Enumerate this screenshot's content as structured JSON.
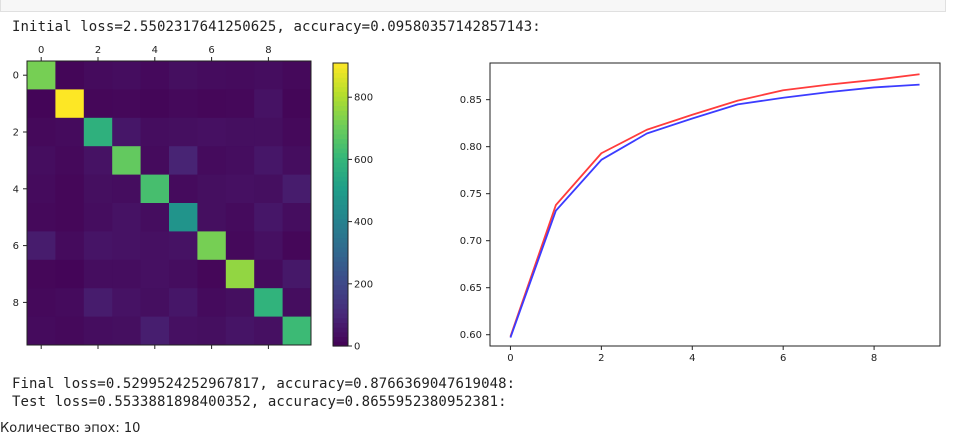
{
  "output": {
    "initial_line": "Initial loss=2.5502317641250625, accuracy=0.09580357142857143:",
    "final_line": "Final loss=0.5299524252967817, accuracy=0.8766369047619048:",
    "test_line": "Test loss=0.5533881898400352, accuracy=0.8655952380952381:",
    "cut_line": "Количество эпох: 10"
  },
  "chart_data": [
    {
      "type": "heatmap",
      "title": "",
      "rows": 10,
      "cols": 10,
      "x_ticks": [
        0,
        2,
        4,
        6,
        8
      ],
      "y_ticks": [
        0,
        2,
        4,
        6,
        8
      ],
      "colorbar": {
        "min": 0,
        "max": 910,
        "ticks": [
          0,
          200,
          400,
          600,
          800
        ]
      },
      "colormap": "viridis",
      "values": [
        [
          720,
          12,
          25,
          30,
          22,
          35,
          28,
          25,
          30,
          20
        ],
        [
          10,
          910,
          15,
          18,
          12,
          20,
          15,
          18,
          45,
          12
        ],
        [
          20,
          25,
          580,
          55,
          30,
          35,
          40,
          35,
          35,
          20
        ],
        [
          30,
          20,
          45,
          690,
          25,
          90,
          25,
          30,
          55,
          30
        ],
        [
          25,
          15,
          35,
          30,
          640,
          25,
          35,
          40,
          35,
          70
        ],
        [
          20,
          15,
          30,
          45,
          30,
          470,
          35,
          25,
          55,
          30
        ],
        [
          70,
          25,
          50,
          45,
          40,
          45,
          720,
          20,
          40,
          15
        ],
        [
          15,
          10,
          30,
          30,
          40,
          30,
          15,
          760,
          25,
          60
        ],
        [
          20,
          25,
          70,
          45,
          35,
          55,
          25,
          35,
          590,
          30
        ],
        [
          25,
          20,
          30,
          35,
          75,
          40,
          35,
          50,
          40,
          620
        ]
      ]
    },
    {
      "type": "line",
      "title": "",
      "xlabel": "",
      "ylabel": "",
      "x": [
        0,
        1,
        2,
        3,
        4,
        5,
        6,
        7,
        8,
        9
      ],
      "xlim": [
        -0.45,
        9.45
      ],
      "ylim": [
        0.588,
        0.889
      ],
      "x_ticks": [
        0,
        2,
        4,
        6,
        8
      ],
      "y_ticks": [
        0.6,
        0.65,
        0.7,
        0.75,
        0.8,
        0.85
      ],
      "series": [
        {
          "color": "#ff3c3c",
          "values": [
            0.598,
            0.738,
            0.793,
            0.818,
            0.834,
            0.849,
            0.86,
            0.866,
            0.871,
            0.877
          ]
        },
        {
          "color": "#3c3cff",
          "values": [
            0.597,
            0.732,
            0.786,
            0.814,
            0.83,
            0.845,
            0.852,
            0.858,
            0.863,
            0.866
          ]
        }
      ]
    }
  ]
}
